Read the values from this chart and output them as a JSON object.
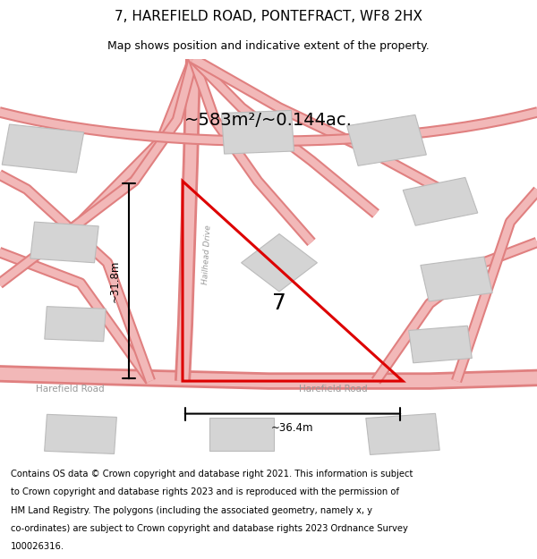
{
  "title": "7, HAREFIELD ROAD, PONTEFRACT, WF8 2HX",
  "subtitle": "Map shows position and indicative extent of the property.",
  "footer": "Contains OS data © Crown copyright and database right 2021. This information is subject to Crown copyright and database rights 2023 and is reproduced with the permission of HM Land Registry. The polygons (including the associated geometry, namely x, y co-ordinates) are subject to Crown copyright and database rights 2023 Ordnance Survey 100026316.",
  "bg_color": "#ffffff",
  "map_bg": "#f7eded",
  "road_color": "#f2b8b8",
  "road_edge": "#e08080",
  "building_fill": "#d4d4d4",
  "building_edge": "#bbbbbb",
  "plot_color": "#dd0000",
  "plot_label": "7",
  "area_text": "~583m²/~0.144ac.",
  "dim_h": "~36.4m",
  "dim_v": "~31.8m",
  "label_hailhead": "Hailhead Drive",
  "label_harefield_r": "Harefield Road",
  "label_harefield_l": "Harefield Road",
  "title_fontsize": 11,
  "subtitle_fontsize": 9,
  "footer_fontsize": 7.2
}
